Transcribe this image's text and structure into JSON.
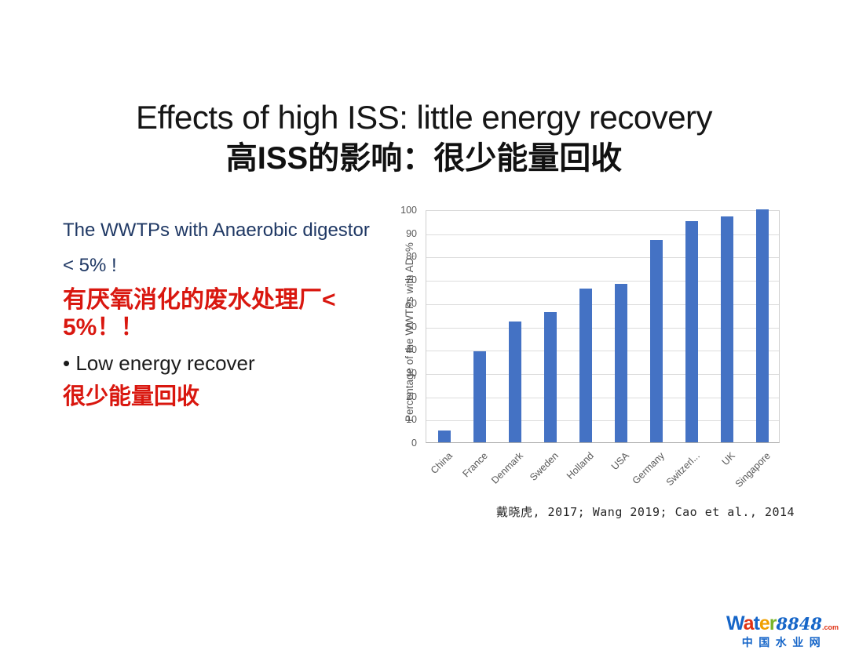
{
  "slide": {
    "title": "Effects of high ISS: little energy recovery",
    "subtitle": "高ISS的影响：很少能量回收"
  },
  "left_panel": {
    "heading_en_line1": "The WWTPs with Anaerobic digestor",
    "heading_en_line2": "< 5% !",
    "heading_zh_line1": "有厌氧消化的废水处理厂<",
    "heading_zh_line2": "5%！！",
    "bullet_line": "• Low energy recover",
    "note_zh": "很少能量回收",
    "colors": {
      "navy": "#1f3864",
      "red": "#d9170f",
      "black": "#1b1b1b"
    }
  },
  "chart_data": {
    "type": "bar",
    "categories": [
      "China",
      "France",
      "Denmark",
      "Sweden",
      "Holland",
      "USA",
      "Germany",
      "Switzerl...",
      "UK",
      "Singapore"
    ],
    "values": [
      5,
      39,
      52,
      56,
      66,
      68,
      87,
      95,
      97,
      100
    ],
    "title": "",
    "xlabel": "",
    "ylabel": "Percentage of the WWTPs with AD, %",
    "ylim": [
      0,
      100
    ],
    "ytick_step": 10,
    "grid": true,
    "legend": "none",
    "bar_color": "#4472c4",
    "tick_color": "#595959"
  },
  "citation": {
    "text": "戴晓虎, 2017; Wang 2019; Cao et al., 2014"
  },
  "logo": {
    "letters": [
      {
        "ch": "W",
        "color": "#1565c8"
      },
      {
        "ch": "a",
        "color": "#e03214"
      },
      {
        "ch": "t",
        "color": "#1565c8"
      },
      {
        "ch": "e",
        "color": "#f0a000"
      },
      {
        "ch": "r",
        "color": "#78b428"
      }
    ],
    "digits": "8848",
    "digits_color": "#1565c8",
    "dotcom": ".com",
    "dotcom_color": "#e03214",
    "chinese": "中国水业网",
    "chinese_color": "#1565c8"
  }
}
